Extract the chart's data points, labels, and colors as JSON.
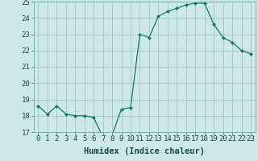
{
  "x": [
    0,
    1,
    2,
    3,
    4,
    5,
    6,
    7,
    8,
    9,
    10,
    11,
    12,
    13,
    14,
    15,
    16,
    17,
    18,
    19,
    20,
    21,
    22,
    23
  ],
  "y": [
    18.6,
    18.1,
    18.6,
    18.1,
    18.0,
    18.0,
    17.9,
    16.7,
    16.8,
    18.4,
    18.5,
    23.0,
    22.8,
    24.1,
    24.4,
    24.6,
    24.8,
    24.9,
    24.9,
    23.6,
    22.8,
    22.5,
    22.0,
    21.8
  ],
  "line_color": "#1a7a6e",
  "marker_color": "#1a7a6e",
  "bg_color": "#cce9e7",
  "grid_color": "#a0c8c5",
  "xlabel": "Humidex (Indice chaleur)",
  "ylim": [
    17,
    25
  ],
  "xlim_min": -0.5,
  "xlim_max": 23.5,
  "yticks": [
    17,
    18,
    19,
    20,
    21,
    22,
    23,
    24,
    25
  ],
  "xticks": [
    0,
    1,
    2,
    3,
    4,
    5,
    6,
    7,
    8,
    9,
    10,
    11,
    12,
    13,
    14,
    15,
    16,
    17,
    18,
    19,
    20,
    21,
    22,
    23
  ],
  "xlabel_fontsize": 7.5,
  "tick_fontsize": 6.5
}
